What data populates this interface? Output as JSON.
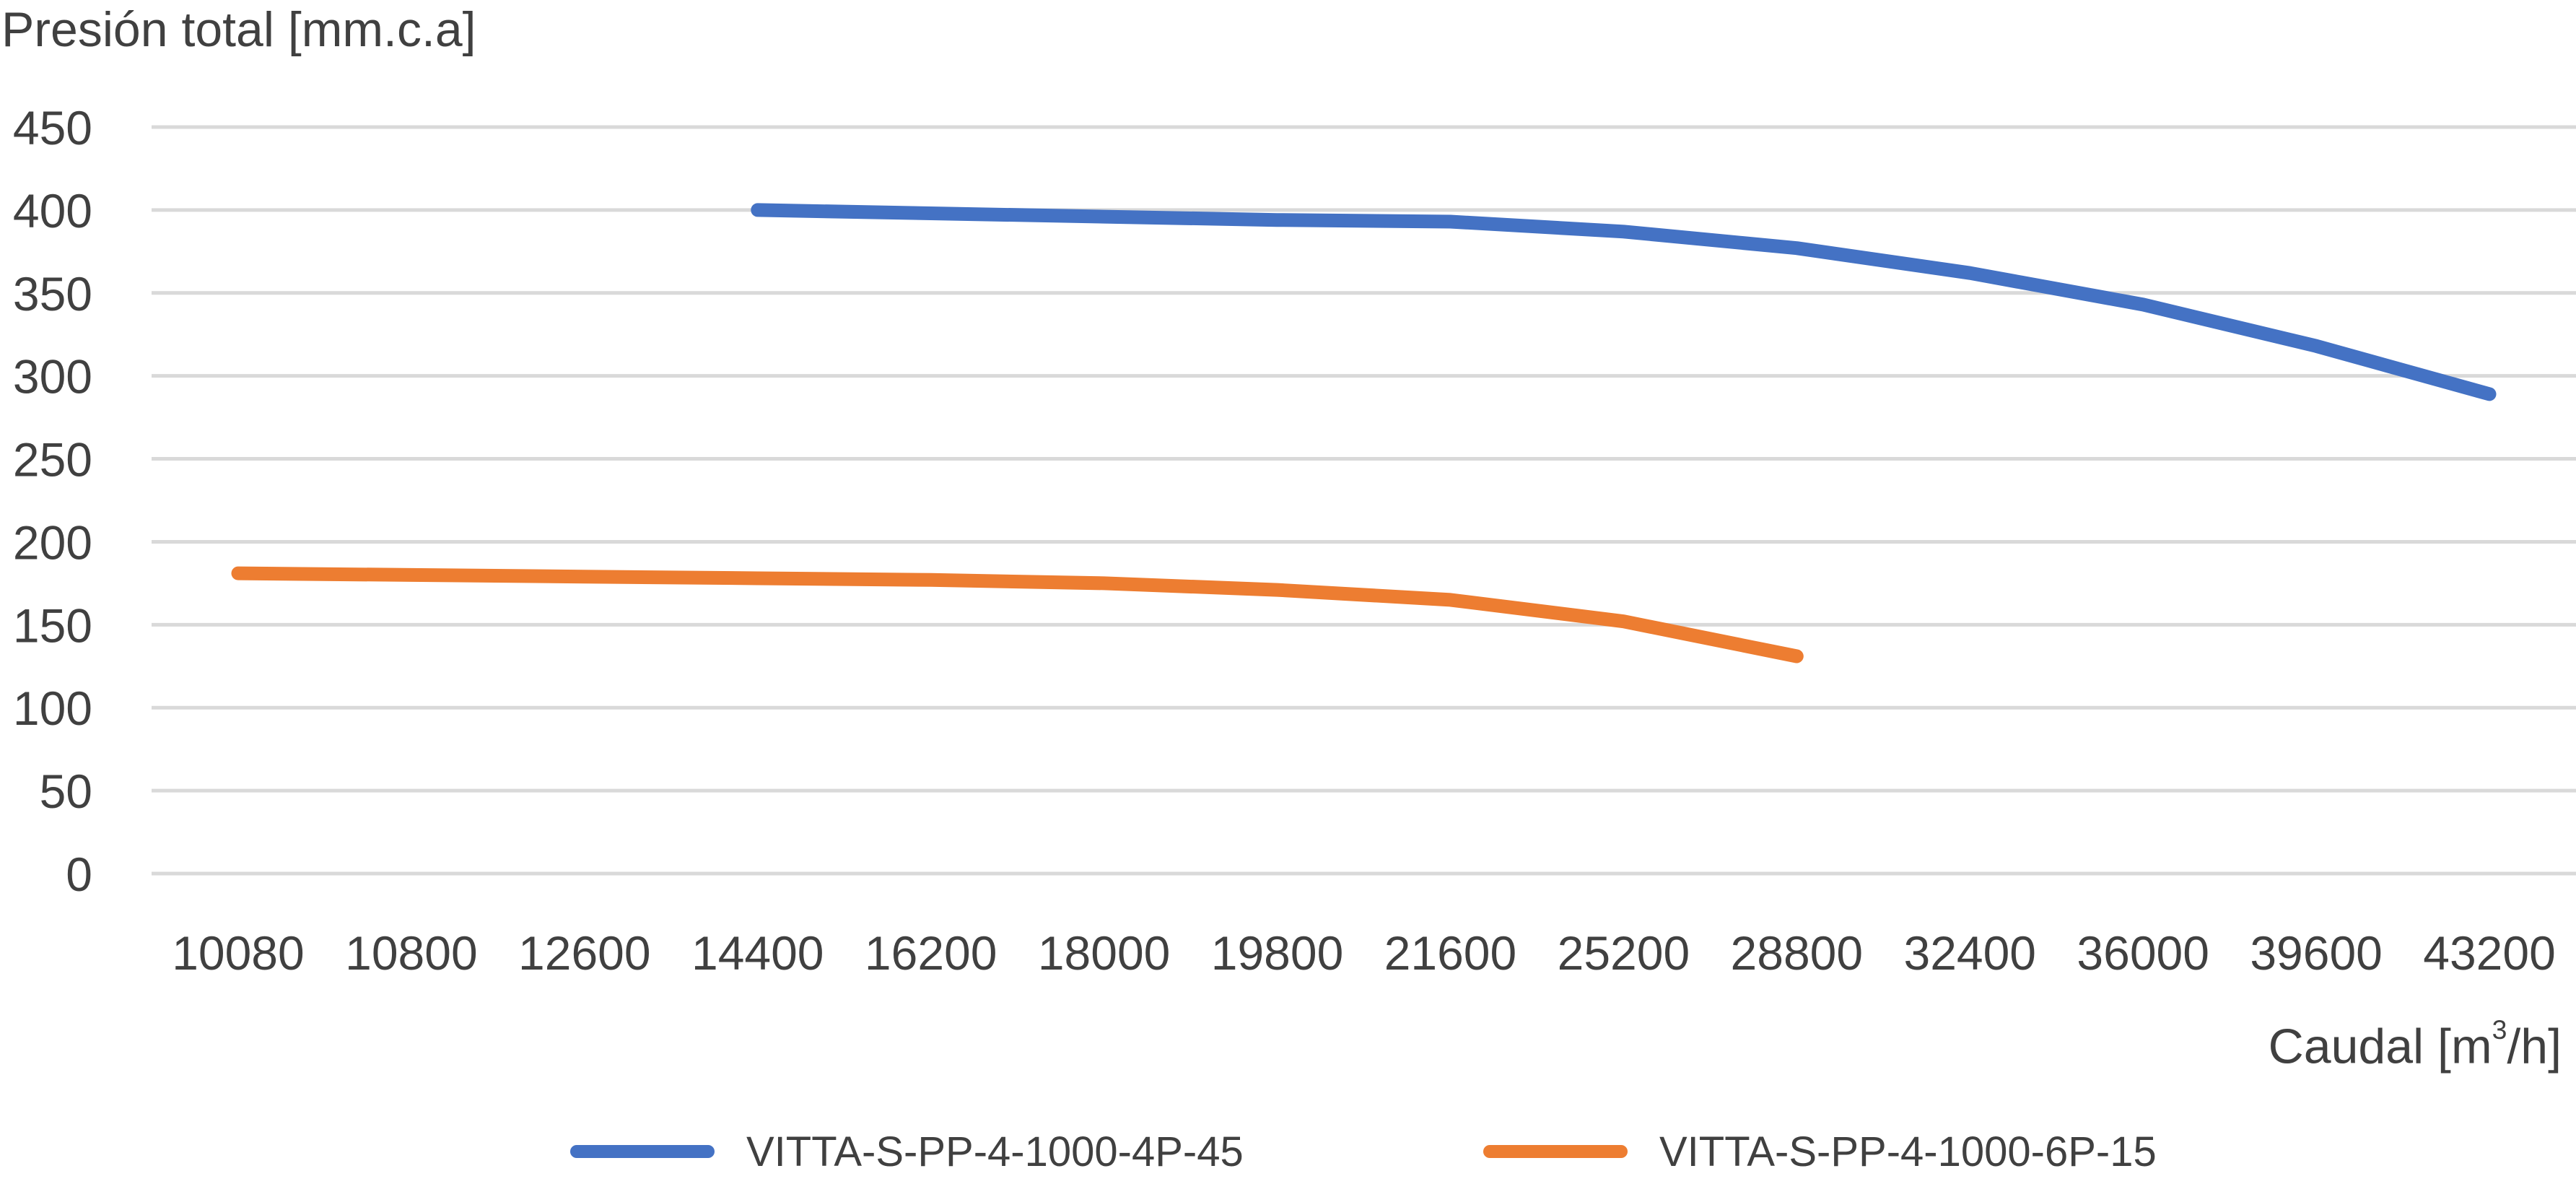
{
  "chart_data": {
    "type": "line",
    "title": "",
    "ylabel": "Presión total [mm.c.a]",
    "xlabel_prefix": "Caudal [m",
    "xlabel_sup": "3",
    "xlabel_suffix": "/h]",
    "ylim": [
      0,
      450
    ],
    "yticks": [
      0,
      50,
      100,
      150,
      200,
      250,
      300,
      350,
      400,
      450
    ],
    "categories": [
      "10080",
      "10800",
      "12600",
      "14400",
      "16200",
      "18000",
      "19800",
      "21600",
      "25200",
      "28800",
      "32400",
      "36000",
      "39600",
      "43200"
    ],
    "grid": true,
    "legend_position": "bottom",
    "series": [
      {
        "name": "VITTA-S-PP-4-1000-4P-45",
        "color": "#4472C4",
        "values": [
          null,
          null,
          null,
          400,
          398,
          396,
          394,
          393,
          387,
          377,
          362,
          343,
          318,
          289
        ]
      },
      {
        "name": "VITTA-S-PP-4-1000-6P-15",
        "color": "#ED7D31",
        "values": [
          181,
          180,
          179,
          178,
          177,
          175,
          171,
          165,
          152,
          131,
          null,
          null,
          null,
          null
        ]
      }
    ]
  }
}
